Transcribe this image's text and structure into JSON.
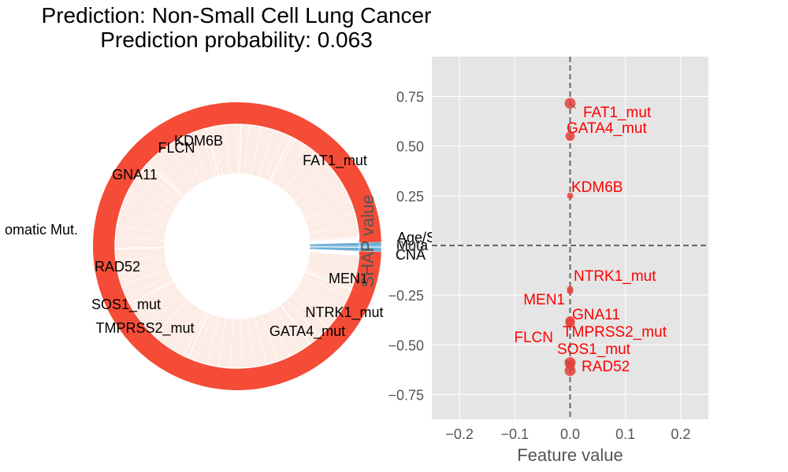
{
  "title": {
    "line1": "Prediction: Non-Small Cell Lung Cancer",
    "line2": "Prediction probability: 0.063"
  },
  "colors": {
    "negative_outer": "#f44c37",
    "negative_inner": "#fdece5",
    "positive": "#6aaed6",
    "scatter_point": "#e8413c",
    "scatter_label": "#ff0000",
    "panel_bg": "#e5e5e5",
    "grid": "#ffffff",
    "axis_text": "#555555"
  },
  "chart_data": [
    {
      "type": "pie",
      "subtype": "donut",
      "groups": [
        {
          "name": "Age/Sex",
          "value": 0.0048,
          "sign": "positive"
        },
        {
          "name": "Mutation",
          "value": 0.0015,
          "sign": "positive"
        },
        {
          "name": "CNA",
          "value": 0.0048,
          "sign": "positive"
        },
        {
          "name": "Somatic Mut.",
          "value": 0.9889,
          "sign": "negative"
        }
      ],
      "outer_labels": [
        "Age/Sex",
        "Mutation",
        "CNA",
        "Somatic Mut."
      ],
      "outer_label_texts": [
        "Age/S",
        "Muta",
        "CNA",
        "omatic Mut."
      ],
      "features": [
        {
          "name": "FAT1_mut",
          "value": 0.11
        },
        {
          "name": "KDM6B",
          "value": 0.045
        },
        {
          "name": "FLCN",
          "value": 0.03
        },
        {
          "name": "GNA11",
          "value": 0.06
        },
        {
          "name": "RAD52",
          "value": 0.08
        },
        {
          "name": "SOS1_mut",
          "value": 0.05
        },
        {
          "name": "TMPRSS2_mut",
          "value": 0.07
        },
        {
          "name": "GATA4_mut",
          "value": 0.11
        },
        {
          "name": "NTRK1_mut",
          "value": 0.06
        },
        {
          "name": "MEN1",
          "value": 0.03
        }
      ]
    },
    {
      "type": "scatter",
      "xlabel": "Feature value",
      "ylabel": "SHAP value",
      "xlim": [
        -0.25,
        0.25
      ],
      "ylim": [
        -0.875,
        0.95
      ],
      "xticks": [
        -0.2,
        -0.1,
        0.0,
        0.1,
        0.2
      ],
      "xtick_labels": [
        "−0.2",
        "−0.1",
        "0.0",
        "0.1",
        "0.2"
      ],
      "yticks": [
        0.75,
        0.5,
        0.25,
        0.0,
        -0.25,
        -0.5,
        -0.75
      ],
      "ytick_labels": [
        "0.75",
        "0.50",
        "0.25",
        "0.00",
        "−0.25",
        "−0.50",
        "−0.75"
      ],
      "grid": true,
      "points": [
        {
          "name": "FAT1_mut",
          "x": 0.0,
          "y": 0.715
        },
        {
          "name": "GATA4_mut",
          "x": 0.0,
          "y": 0.55
        },
        {
          "name": "KDM6B",
          "x": 0.0,
          "y": 0.25
        },
        {
          "name": "NTRK1_mut",
          "x": 0.0,
          "y": -0.22
        },
        {
          "name": "MEN1",
          "x": 0.0,
          "y": -0.23
        },
        {
          "name": "GNA11",
          "x": 0.0,
          "y": -0.38
        },
        {
          "name": "TMPRSS2_mut",
          "x": 0.0,
          "y": -0.39
        },
        {
          "name": "SOS1_mut",
          "x": 0.0,
          "y": -0.59
        },
        {
          "name": "FLCN",
          "x": 0.0,
          "y": -0.6
        },
        {
          "name": "RAD52",
          "x": 0.0,
          "y": -0.63
        }
      ]
    }
  ]
}
